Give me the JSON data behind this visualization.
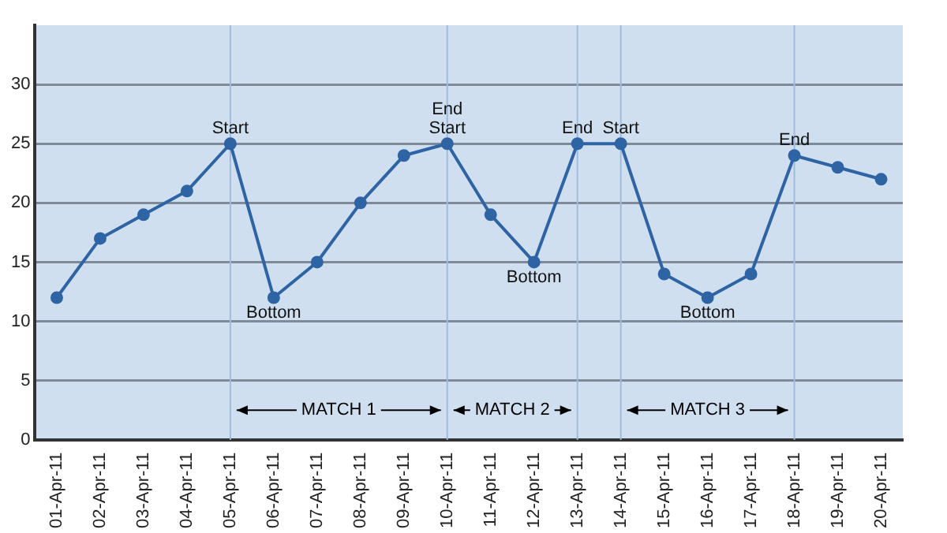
{
  "chart_data": {
    "type": "line",
    "categories": [
      "01-Apr-11",
      "02-Apr-11",
      "03-Apr-11",
      "04-Apr-11",
      "05-Apr-11",
      "06-Apr-11",
      "07-Apr-11",
      "08-Apr-11",
      "09-Apr-11",
      "10-Apr-11",
      "11-Apr-11",
      "12-Apr-11",
      "13-Apr-11",
      "14-Apr-11",
      "15-Apr-11",
      "16-Apr-11",
      "17-Apr-11",
      "18-Apr-11",
      "19-Apr-11",
      "20-Apr-11"
    ],
    "series": [
      {
        "color": "#2e64a4",
        "values": [
          12,
          17,
          19,
          21,
          25,
          12,
          15,
          20,
          24,
          25,
          19,
          15,
          25,
          25,
          14,
          12,
          14,
          24,
          23,
          22
        ]
      }
    ],
    "ylim": [
      0,
      35
    ],
    "yticks": [
      0,
      5,
      10,
      15,
      20,
      25,
      30
    ],
    "grid": "y",
    "marker": "circle",
    "line_style": "solid",
    "ref_lines": [
      {
        "axis": "x",
        "value": "05-Apr-11"
      },
      {
        "axis": "x",
        "value": "10-Apr-11"
      },
      {
        "axis": "x",
        "value": "13-Apr-11"
      },
      {
        "axis": "x",
        "value": "14-Apr-11"
      },
      {
        "axis": "x",
        "value": "18-Apr-11"
      }
    ],
    "annotations": [
      {
        "text": "MATCH 1",
        "x": "05-Apr-11",
        "y": 2.5
      },
      {
        "text": "MATCH 2",
        "x": "10-Apr-11",
        "y": 2.5
      },
      {
        "text": "MATCH 3",
        "x": "14-Apr-11",
        "y": 2.5
      },
      {
        "text": "Start",
        "x": "05-Apr-11",
        "y": 25
      },
      {
        "text": "Bottom",
        "x": "06-Apr-11",
        "y": 12
      },
      {
        "text": "End",
        "x": "10-Apr-11",
        "y": 25
      },
      {
        "text": "Start",
        "x": "10-Apr-11",
        "y": 25
      },
      {
        "text": "Bottom",
        "x": "12-Apr-11",
        "y": 15
      },
      {
        "text": "End",
        "x": "13-Apr-11",
        "y": 25
      },
      {
        "text": "Start",
        "x": "14-Apr-11",
        "y": 25
      },
      {
        "text": "Bottom",
        "x": "16-Apr-11",
        "y": 12
      },
      {
        "text": "End",
        "x": "18-Apr-11",
        "y": 24
      }
    ]
  }
}
